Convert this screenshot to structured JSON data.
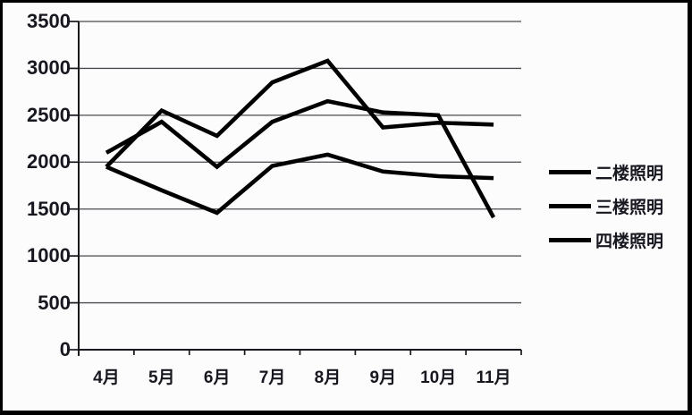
{
  "chart_data": {
    "type": "line",
    "title": "",
    "xlabel": "",
    "ylabel": "",
    "categories": [
      "4月",
      "5月",
      "6月",
      "7月",
      "8月",
      "9月",
      "10月",
      "11月"
    ],
    "series": [
      {
        "name": "二楼照明",
        "values": [
          2100,
          2430,
          1950,
          2430,
          2650,
          2530,
          2500,
          1410
        ]
      },
      {
        "name": "三楼照明",
        "values": [
          1950,
          1700,
          1460,
          1960,
          2080,
          1900,
          1850,
          1830
        ]
      },
      {
        "name": "四楼照明",
        "values": [
          1950,
          2550,
          2280,
          2850,
          3080,
          2370,
          2420,
          2400
        ]
      }
    ],
    "ylim": [
      0,
      3500
    ],
    "yticks": [
      0,
      500,
      1000,
      1500,
      2000,
      2500,
      3000,
      3500
    ],
    "grid": true,
    "legend_position": "right"
  },
  "colors": {
    "line": "#000000",
    "axis": "#17171c",
    "gridline": "#4a4a50",
    "text": "#17171f",
    "background": "#fcfcfd",
    "border": "#000000"
  }
}
